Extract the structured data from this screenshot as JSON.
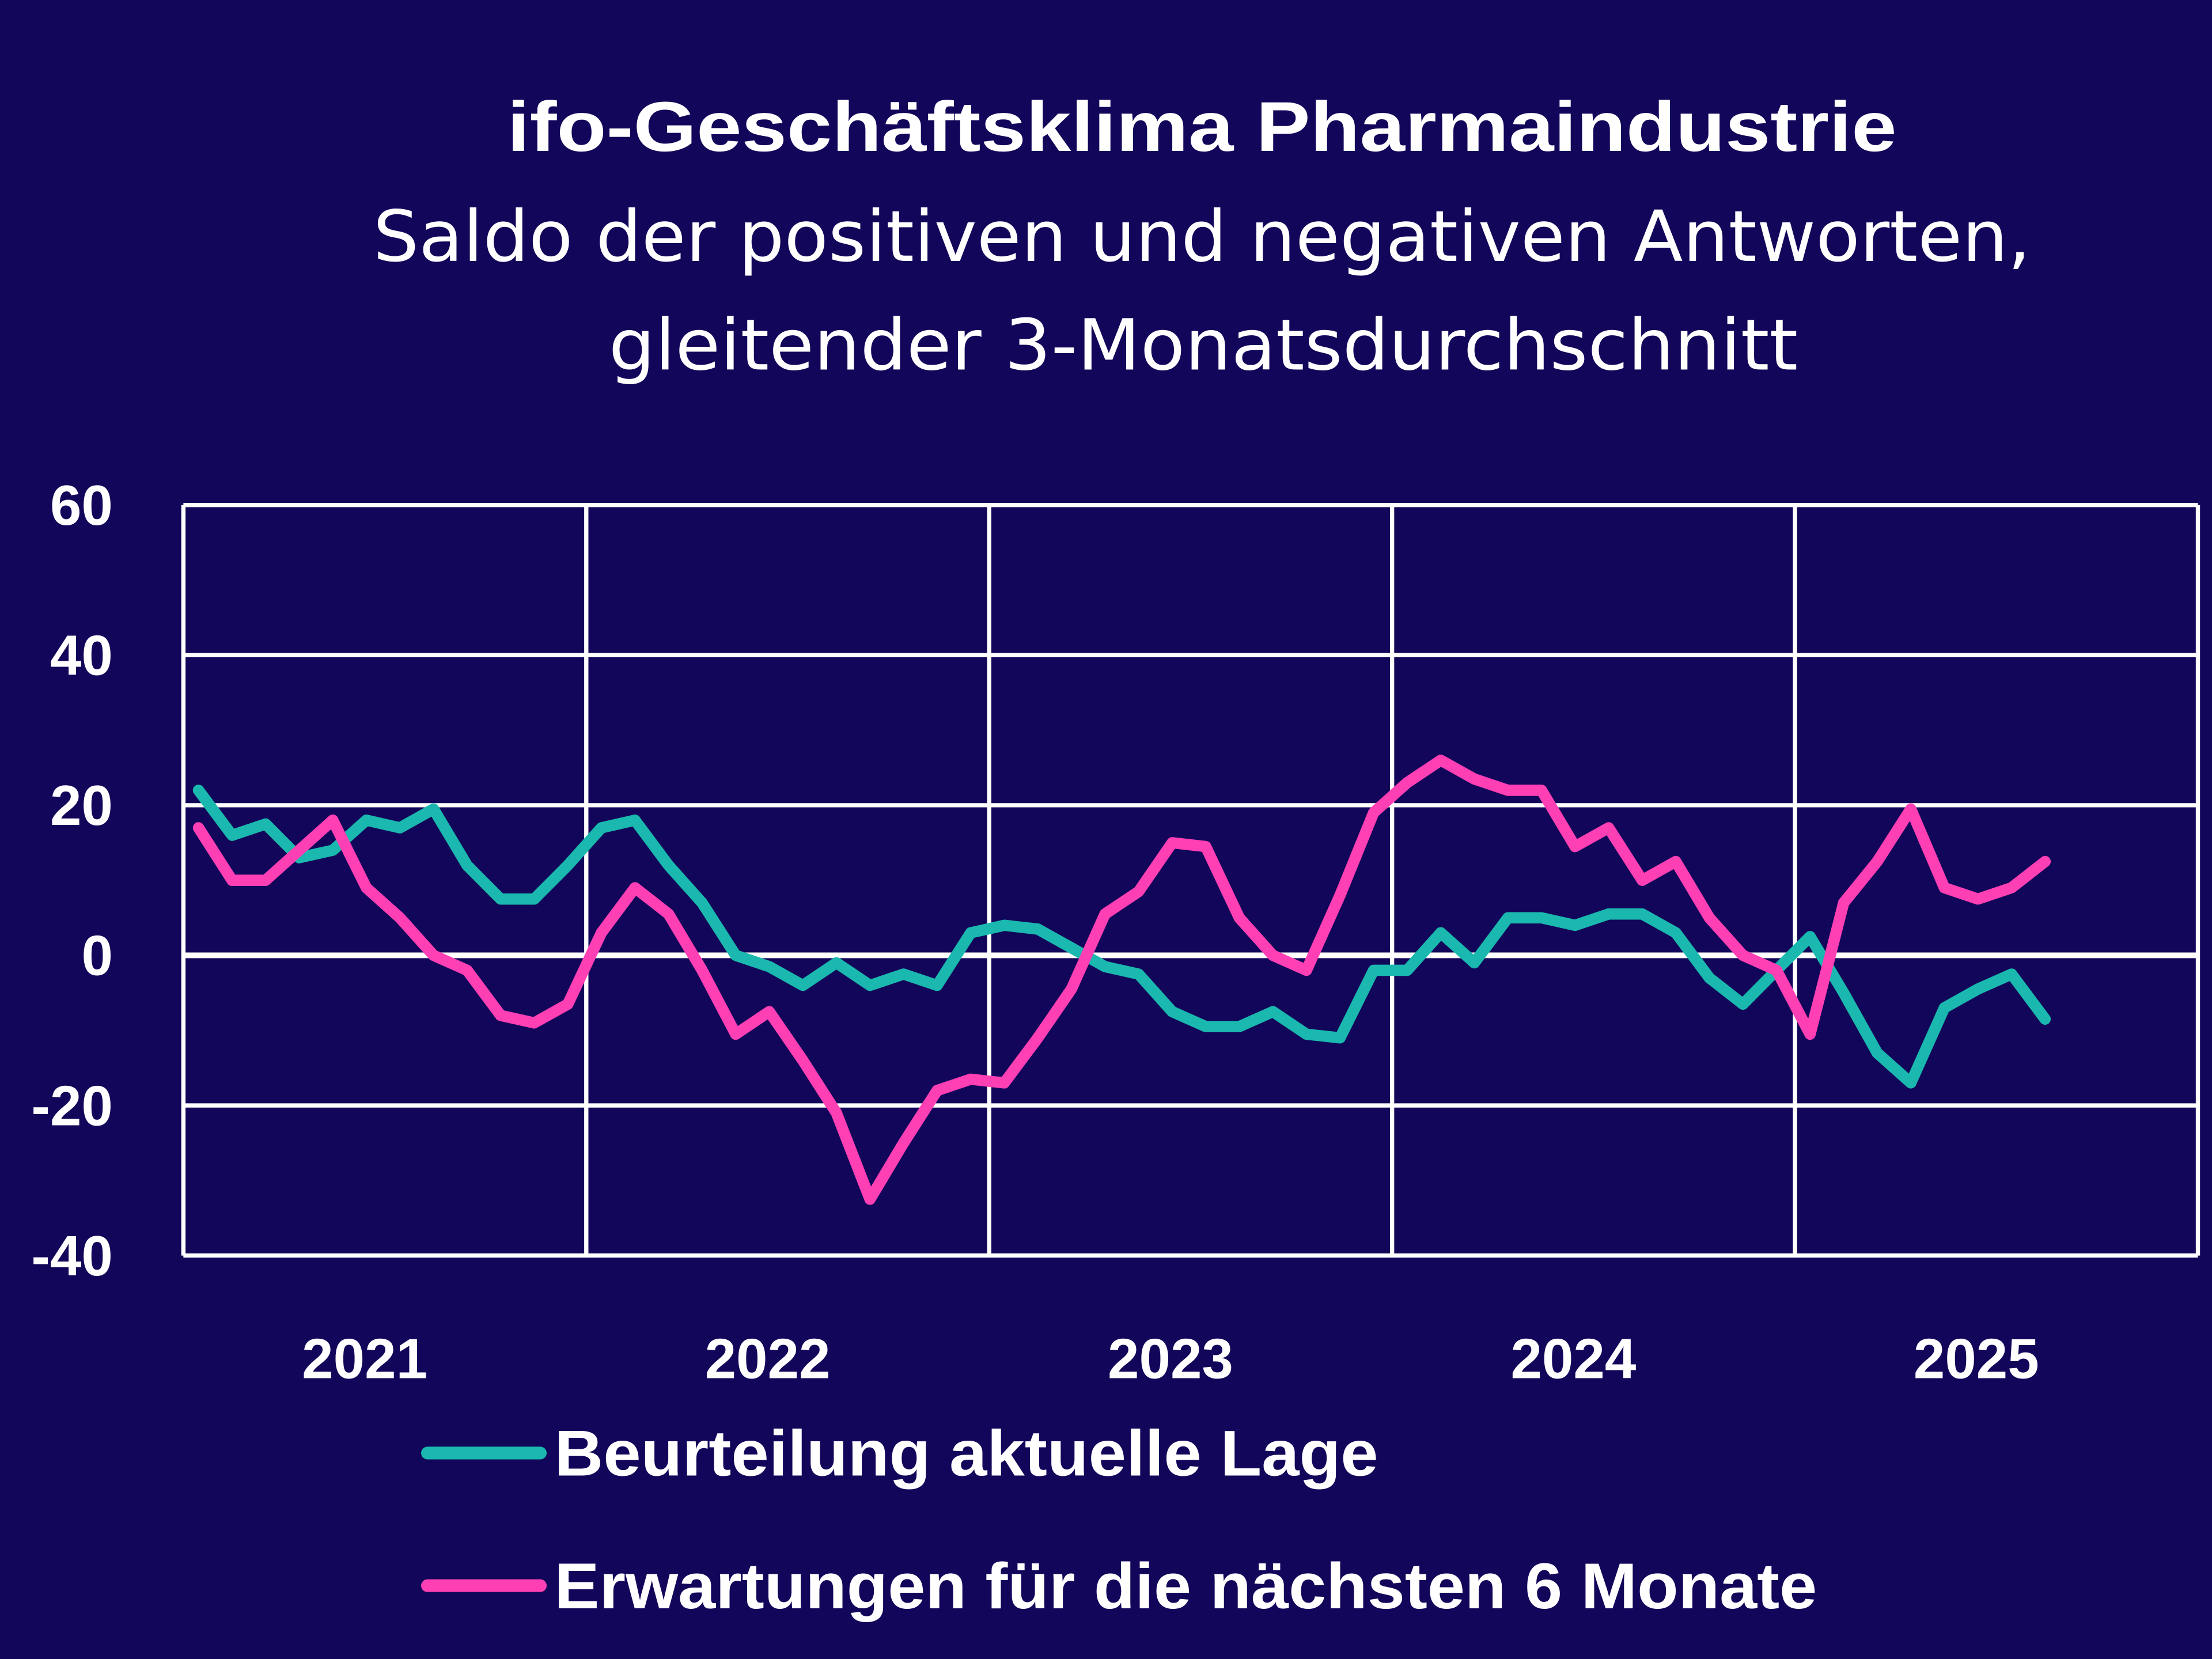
{
  "colors": {
    "background": "#12065a",
    "grid": "#ffffff",
    "lage": "#1ab8ae",
    "erwartungen": "#ff3fb4"
  },
  "chart_data": {
    "type": "line",
    "title": "ifo-Geschäftsklima Pharmaindustrie",
    "subtitle": [
      "Saldo der positiven und negativen Antworten,",
      "gleitender 3-Monatsdurchschnitt"
    ],
    "xlabel": "",
    "ylabel": "",
    "ylim": [
      -40,
      60
    ],
    "y_ticks": [
      "60",
      "40",
      "20",
      "0",
      "-20",
      "-40"
    ],
    "x_tick_labels": [
      "2021",
      "2022",
      "2023",
      "2024",
      "2025"
    ],
    "grid": true,
    "legend_placement": "bottom",
    "series": [
      {
        "name": "Beurteilung aktuelle Lage",
        "color": "#1ab8ae",
        "values": [
          22,
          16,
          17.5,
          13,
          14,
          18,
          17,
          19.5,
          12,
          7.5,
          7.5,
          12,
          17,
          18,
          12,
          7,
          0,
          -1.5,
          -4,
          -1,
          -4,
          -2.5,
          -4,
          3,
          4,
          3.5,
          1,
          -1.5,
          -2.5,
          -7.5,
          -9.5,
          -9.5,
          -7.5,
          -10.5,
          -11,
          -2,
          -2,
          3,
          -1,
          5,
          5,
          4,
          5.5,
          5.5,
          3,
          -3,
          -6.5,
          -2,
          2.5,
          -5,
          -13,
          -17,
          -7,
          -4.5,
          -2.5,
          -8.5
        ]
      },
      {
        "name": "Erwartungen für die nächsten 6 Monate",
        "color": "#ff3fb4",
        "values": [
          17,
          10,
          10,
          14,
          18,
          9,
          5,
          0,
          -2,
          -8,
          -9,
          -6.5,
          3,
          9,
          5.5,
          -2,
          -10.5,
          -7.5,
          -14,
          -21,
          -32.5,
          -25,
          -18,
          -16.5,
          -17,
          -11,
          -4.5,
          5.5,
          8.5,
          15,
          14.5,
          5,
          0,
          -2,
          8,
          19,
          23,
          26,
          23.5,
          22,
          22,
          14.5,
          17,
          10,
          12.5,
          5,
          0,
          -2,
          -10.5,
          7,
          12.5,
          19.5,
          9,
          7.5,
          9,
          12.5
        ]
      }
    ]
  }
}
